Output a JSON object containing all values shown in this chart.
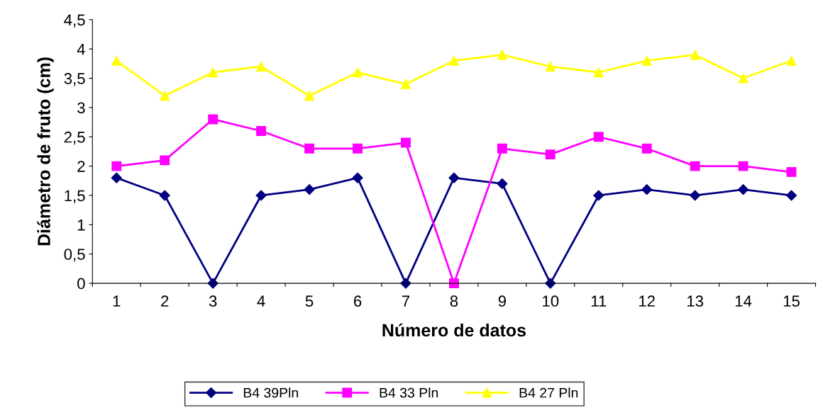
{
  "chart_data": {
    "type": "line",
    "xlabel": "Número de datos",
    "ylabel": "Diámetro de fruto (cm)",
    "categories": [
      "1",
      "2",
      "3",
      "4",
      "5",
      "6",
      "7",
      "8",
      "9",
      "10",
      "11",
      "12",
      "13",
      "14",
      "15"
    ],
    "series": [
      {
        "name": "B4 39Pln",
        "color": "#000080",
        "marker": "diamond",
        "values": [
          1.8,
          1.5,
          0,
          1.5,
          1.6,
          1.8,
          0,
          1.8,
          1.7,
          0,
          1.5,
          1.6,
          1.5,
          1.6,
          1.5
        ]
      },
      {
        "name": "B4 33 Pln",
        "color": "#ff00ff",
        "marker": "square",
        "values": [
          2.0,
          2.1,
          2.8,
          2.6,
          2.3,
          2.3,
          2.4,
          0,
          2.3,
          2.2,
          2.5,
          2.3,
          2.0,
          2.0,
          1.9
        ]
      },
      {
        "name": "B4 27 Pln",
        "color": "#ffff00",
        "marker": "triangle",
        "values": [
          3.8,
          3.2,
          3.6,
          3.7,
          3.2,
          3.6,
          3.4,
          3.8,
          3.9,
          3.7,
          3.6,
          3.8,
          3.9,
          3.5,
          3.8
        ]
      }
    ],
    "ylim": [
      0,
      4.5
    ],
    "yticks": [
      0,
      {
        "value": 0.5,
        "label": "0,5"
      },
      1,
      {
        "value": 1.5,
        "label": "1,5"
      },
      2,
      {
        "value": 2.5,
        "label": "2,5"
      },
      3,
      {
        "value": 3.5,
        "label": "3,5"
      },
      4,
      {
        "value": 4.5,
        "label": "4,5"
      }
    ],
    "grid": false,
    "legend": "bottom",
    "line_style": "solid"
  }
}
